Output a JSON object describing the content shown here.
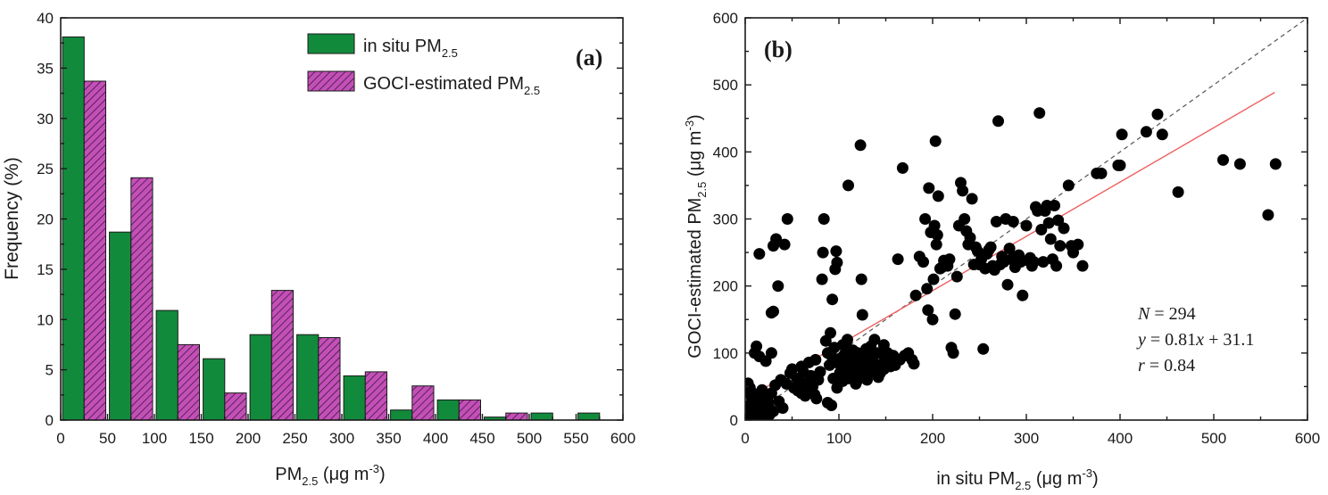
{
  "chart_data": [
    {
      "type": "bar",
      "panel_label": "(a)",
      "xlabel": {
        "main": "PM",
        "sub": "2.5",
        "unit_pre": " (μg m",
        "sup": "-3",
        "unit_post": ")"
      },
      "ylabel": "Frequency (%)",
      "xlim": [
        0,
        600
      ],
      "ylim": [
        0,
        40
      ],
      "x_ticks": [
        "0",
        "50",
        "100",
        "150",
        "200",
        "250",
        "300",
        "350",
        "400",
        "450",
        "500",
        "550",
        "600"
      ],
      "y_ticks": [
        "0",
        "5",
        "10",
        "15",
        "20",
        "25",
        "30",
        "35",
        "40"
      ],
      "bin_centers": [
        25,
        75,
        125,
        175,
        225,
        275,
        325,
        375,
        425,
        475,
        525,
        575
      ],
      "legend_position": "top-center",
      "series": [
        {
          "key": "situ",
          "name": {
            "main": "in situ PM",
            "sub": "2.5"
          },
          "color": "#128a3c",
          "pattern": "solid",
          "values": [
            38.1,
            18.7,
            10.9,
            6.1,
            8.5,
            8.5,
            4.4,
            1.0,
            2.0,
            0.3,
            0.7,
            0.7
          ]
        },
        {
          "key": "goci",
          "name": {
            "main": "GOCI-estimated PM",
            "sub": "2.5"
          },
          "color": "#c44fb8",
          "pattern": "hatched",
          "values": [
            33.7,
            24.1,
            7.5,
            2.7,
            12.9,
            8.2,
            4.8,
            3.4,
            2.0,
            0.7,
            0.0,
            0.0
          ]
        }
      ]
    },
    {
      "type": "scatter",
      "panel_label": "(b)",
      "xlabel": {
        "main": "in situ PM",
        "sub": "2.5",
        "unit_pre": " (μg m",
        "sup": "-3",
        "unit_post": ")"
      },
      "ylabel": {
        "main": "GOCI-estimated PM",
        "sub": "2.5",
        "unit_pre": " (μg m",
        "sup": "-3",
        "unit_post": ")"
      },
      "xlim": [
        0,
        600
      ],
      "ylim": [
        0,
        600
      ],
      "x_ticks": [
        "0",
        "100",
        "200",
        "300",
        "400",
        "500",
        "600"
      ],
      "y_ticks": [
        "0",
        "100",
        "200",
        "300",
        "400",
        "500",
        "600"
      ],
      "reference_line": {
        "style": "dashed",
        "color": "#555555",
        "slope": 1,
        "intercept": 0
      },
      "fit_line": {
        "color": "#f06060",
        "slope": 0.81,
        "intercept": 31.1,
        "x_range": [
          0,
          565
        ]
      },
      "stats": [
        {
          "var": "N",
          "text": " = 294"
        },
        {
          "var": "y",
          "text": " = 0.81",
          "var2": "x",
          "text2": " + 31.1"
        },
        {
          "var": "r",
          "text": " = 0.84"
        }
      ],
      "points": [
        [
          1,
          3
        ],
        [
          2,
          6
        ],
        [
          3,
          10
        ],
        [
          4,
          4
        ],
        [
          5,
          15
        ],
        [
          6,
          8
        ],
        [
          7,
          20
        ],
        [
          8,
          12
        ],
        [
          9,
          2
        ],
        [
          10,
          25
        ],
        [
          11,
          18
        ],
        [
          12,
          5
        ],
        [
          13,
          30
        ],
        [
          14,
          9
        ],
        [
          15,
          14
        ],
        [
          16,
          22
        ],
        [
          17,
          7
        ],
        [
          18,
          35
        ],
        [
          19,
          11
        ],
        [
          20,
          3
        ],
        [
          22,
          16
        ],
        [
          24,
          28
        ],
        [
          26,
          8
        ],
        [
          28,
          40
        ],
        [
          30,
          13
        ],
        [
          5,
          48
        ],
        [
          8,
          40
        ],
        [
          3,
          55
        ],
        [
          10,
          100
        ],
        [
          12,
          110
        ],
        [
          15,
          95
        ],
        [
          6,
          38
        ],
        [
          9,
          30
        ],
        [
          18,
          45
        ],
        [
          21,
          12
        ],
        [
          25,
          20
        ],
        [
          14,
          2
        ],
        [
          11,
          28
        ],
        [
          7,
          33
        ],
        [
          4,
          22
        ],
        [
          15,
          248
        ],
        [
          22,
          88
        ],
        [
          28,
          100
        ],
        [
          30,
          260
        ],
        [
          33,
          270
        ],
        [
          35,
          200
        ],
        [
          45,
          300
        ],
        [
          42,
          262
        ],
        [
          30,
          162
        ],
        [
          36,
          28
        ],
        [
          40,
          18
        ],
        [
          48,
          70
        ],
        [
          50,
          76
        ],
        [
          55,
          62
        ],
        [
          58,
          58
        ],
        [
          60,
          80
        ],
        [
          62,
          72
        ],
        [
          65,
          55
        ],
        [
          66,
          42
        ],
        [
          68,
          86
        ],
        [
          70,
          66
        ],
        [
          72,
          50
        ],
        [
          74,
          38
        ],
        [
          75,
          90
        ],
        [
          78,
          60
        ],
        [
          80,
          72
        ],
        [
          82,
          210
        ],
        [
          83,
          250
        ],
        [
          84,
          300
        ],
        [
          86,
          118
        ],
        [
          88,
          100
        ],
        [
          90,
          82
        ],
        [
          91,
          130
        ],
        [
          92,
          96
        ],
        [
          93,
          180
        ],
        [
          94,
          62
        ],
        [
          95,
          108
        ],
        [
          96,
          225
        ],
        [
          97,
          252
        ],
        [
          98,
          235
        ],
        [
          100,
          84
        ],
        [
          101,
          70
        ],
        [
          102,
          92
        ],
        [
          103,
          78
        ],
        [
          104,
          112
        ],
        [
          105,
          66
        ],
        [
          106,
          98
        ],
        [
          107,
          86
        ],
        [
          108,
          110
        ],
        [
          109,
          120
        ],
        [
          110,
          350
        ],
        [
          111,
          88
        ],
        [
          112,
          72
        ],
        [
          113,
          95
        ],
        [
          114,
          80
        ],
        [
          115,
          104
        ],
        [
          116,
          68
        ],
        [
          117,
          76
        ],
        [
          118,
          90
        ],
        [
          119,
          58
        ],
        [
          120,
          100
        ],
        [
          121,
          85
        ],
        [
          122,
          70
        ],
        [
          123,
          410
        ],
        [
          124,
          210
        ],
        [
          125,
          157
        ],
        [
          126,
          64
        ],
        [
          127,
          92
        ],
        [
          128,
          82
        ],
        [
          129,
          106
        ],
        [
          130,
          74
        ],
        [
          132,
          96
        ],
        [
          134,
          110
        ],
        [
          136,
          88
        ],
        [
          138,
          120
        ],
        [
          140,
          78
        ],
        [
          142,
          100
        ],
        [
          144,
          70
        ],
        [
          146,
          84
        ],
        [
          148,
          112
        ],
        [
          150,
          92
        ],
        [
          152,
          100
        ],
        [
          155,
          80
        ],
        [
          158,
          96
        ],
        [
          160,
          82
        ],
        [
          163,
          240
        ],
        [
          165,
          90
        ],
        [
          168,
          376
        ],
        [
          170,
          96
        ],
        [
          174,
          100
        ],
        [
          178,
          90
        ],
        [
          180,
          84
        ],
        [
          182,
          186
        ],
        [
          186,
          244
        ],
        [
          190,
          236
        ],
        [
          192,
          300
        ],
        [
          194,
          196
        ],
        [
          195,
          164
        ],
        [
          196,
          346
        ],
        [
          198,
          280
        ],
        [
          200,
          150
        ],
        [
          201,
          210
        ],
        [
          202,
          290
        ],
        [
          203,
          416
        ],
        [
          204,
          262
        ],
        [
          205,
          276
        ],
        [
          206,
          334
        ],
        [
          208,
          226
        ],
        [
          210,
          228
        ],
        [
          212,
          238
        ],
        [
          214,
          232
        ],
        [
          216,
          230
        ],
        [
          218,
          240
        ],
        [
          220,
          108
        ],
        [
          222,
          100
        ],
        [
          224,
          158
        ],
        [
          226,
          214
        ],
        [
          228,
          290
        ],
        [
          230,
          354
        ],
        [
          232,
          342
        ],
        [
          234,
          300
        ],
        [
          236,
          282
        ],
        [
          238,
          262
        ],
        [
          240,
          272
        ],
        [
          242,
          330
        ],
        [
          244,
          232
        ],
        [
          246,
          258
        ],
        [
          248,
          252
        ],
        [
          250,
          232
        ],
        [
          252,
          240
        ],
        [
          254,
          106
        ],
        [
          256,
          226
        ],
        [
          258,
          248
        ],
        [
          260,
          254
        ],
        [
          262,
          258
        ],
        [
          264,
          230
        ],
        [
          266,
          224
        ],
        [
          268,
          296
        ],
        [
          270,
          446
        ],
        [
          272,
          232
        ],
        [
          274,
          244
        ],
        [
          276,
          236
        ],
        [
          278,
          300
        ],
        [
          280,
          202
        ],
        [
          282,
          256
        ],
        [
          284,
          240
        ],
        [
          286,
          296
        ],
        [
          288,
          228
        ],
        [
          290,
          244
        ],
        [
          292,
          246
        ],
        [
          294,
          236
        ],
        [
          296,
          186
        ],
        [
          300,
          290
        ],
        [
          302,
          238
        ],
        [
          304,
          242
        ],
        [
          306,
          230
        ],
        [
          308,
          236
        ],
        [
          310,
          318
        ],
        [
          312,
          312
        ],
        [
          314,
          458
        ],
        [
          316,
          284
        ],
        [
          318,
          236
        ],
        [
          320,
          312
        ],
        [
          322,
          320
        ],
        [
          324,
          294
        ],
        [
          326,
          270
        ],
        [
          328,
          240
        ],
        [
          330,
          320
        ],
        [
          332,
          230
        ],
        [
          334,
          298
        ],
        [
          336,
          260
        ],
        [
          340,
          286
        ],
        [
          345,
          350
        ],
        [
          348,
          260
        ],
        [
          350,
          250
        ],
        [
          355,
          262
        ],
        [
          360,
          230
        ],
        [
          375,
          368
        ],
        [
          380,
          368
        ],
        [
          398,
          380
        ],
        [
          400,
          380
        ],
        [
          402,
          426
        ],
        [
          428,
          430
        ],
        [
          440,
          456
        ],
        [
          445,
          426
        ],
        [
          462,
          340
        ],
        [
          510,
          388
        ],
        [
          528,
          382
        ],
        [
          558,
          306
        ],
        [
          566,
          382
        ],
        [
          28,
          160
        ],
        [
          32,
          52
        ],
        [
          38,
          60
        ],
        [
          44,
          54
        ],
        [
          52,
          48
        ],
        [
          56,
          44
        ],
        [
          60,
          40
        ],
        [
          64,
          36
        ],
        [
          76,
          32
        ],
        [
          88,
          26
        ],
        [
          92,
          22
        ],
        [
          98,
          48
        ],
        [
          104,
          58
        ],
        [
          110,
          62
        ],
        [
          118,
          54
        ],
        [
          124,
          66
        ],
        [
          130,
          60
        ],
        [
          136,
          72
        ],
        [
          142,
          64
        ],
        [
          148,
          76
        ]
      ]
    }
  ]
}
